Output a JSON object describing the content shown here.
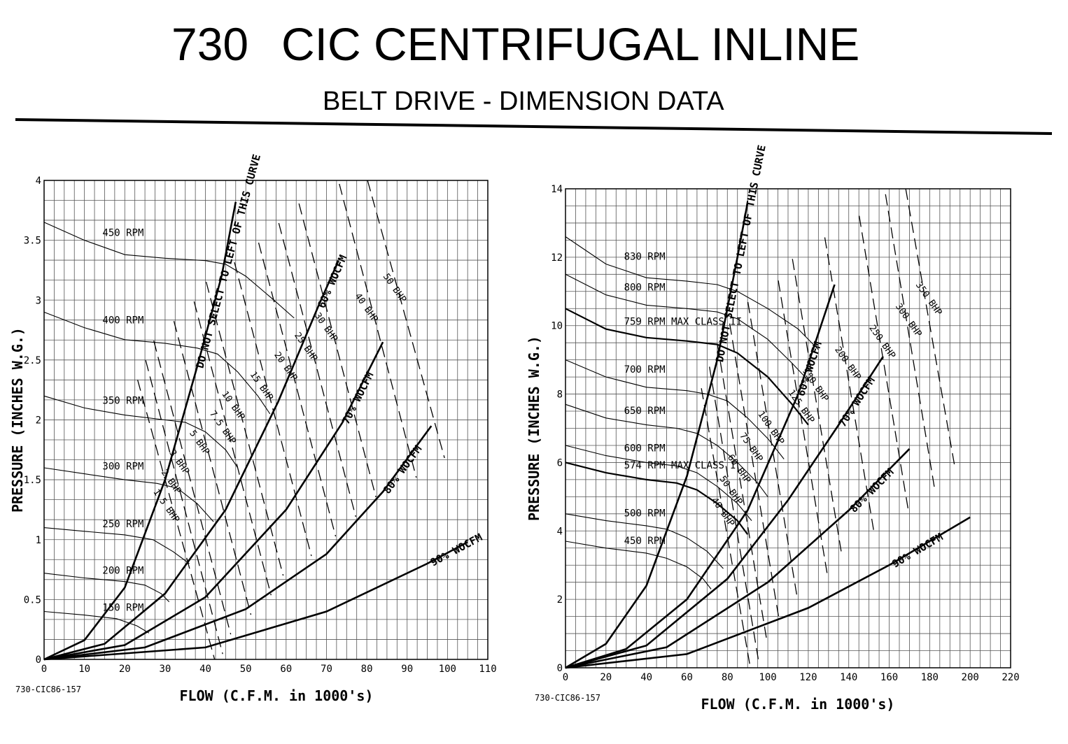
{
  "header": {
    "model": "730",
    "title": "CIC CENTRIFUGAL INLINE",
    "subtitle": "BELT DRIVE - DIMENSION DATA"
  },
  "chart_data": [
    {
      "type": "line",
      "drawing_number": "730-CIC86-157",
      "xlabel": "FLOW (C.F.M. in 1000's)",
      "ylabel": "PRESSURE (INCHES W.G.)",
      "xlim": [
        0,
        110
      ],
      "ylim": [
        0,
        4
      ],
      "x_ticks": [
        0,
        10,
        20,
        30,
        40,
        50,
        60,
        70,
        80,
        90,
        100,
        110
      ],
      "y_ticks": [
        0,
        0.5,
        1,
        1.5,
        2,
        2.5,
        3,
        3.5,
        4
      ],
      "grid": true,
      "rpm_curves": [
        {
          "label": "450 RPM",
          "points": [
            [
              0,
              3.65
            ],
            [
              10,
              3.5
            ],
            [
              20,
              3.38
            ],
            [
              30,
              3.35
            ],
            [
              40,
              3.33
            ],
            [
              45,
              3.3
            ],
            [
              50,
              3.2
            ],
            [
              57,
              3.0
            ],
            [
              62,
              2.85
            ]
          ]
        },
        {
          "label": "400 RPM",
          "points": [
            [
              0,
              2.9
            ],
            [
              10,
              2.77
            ],
            [
              20,
              2.67
            ],
            [
              30,
              2.64
            ],
            [
              38,
              2.6
            ],
            [
              43,
              2.55
            ],
            [
              48,
              2.4
            ],
            [
              53,
              2.2
            ],
            [
              56,
              2.05
            ]
          ]
        },
        {
          "label": "350 RPM",
          "points": [
            [
              0,
              2.2
            ],
            [
              10,
              2.1
            ],
            [
              20,
              2.04
            ],
            [
              30,
              2.0
            ],
            [
              35,
              1.98
            ],
            [
              40,
              1.9
            ],
            [
              45,
              1.75
            ],
            [
              48,
              1.6
            ]
          ]
        },
        {
          "label": "300 RPM",
          "points": [
            [
              0,
              1.6
            ],
            [
              10,
              1.55
            ],
            [
              20,
              1.5
            ],
            [
              28,
              1.47
            ],
            [
              33,
              1.43
            ],
            [
              38,
              1.3
            ],
            [
              42,
              1.15
            ]
          ]
        },
        {
          "label": "250 RPM",
          "points": [
            [
              0,
              1.1
            ],
            [
              10,
              1.07
            ],
            [
              20,
              1.04
            ],
            [
              27,
              1.0
            ],
            [
              32,
              0.9
            ],
            [
              36,
              0.8
            ]
          ]
        },
        {
          "label": "200 RPM",
          "points": [
            [
              0,
              0.72
            ],
            [
              10,
              0.68
            ],
            [
              20,
              0.65
            ],
            [
              25,
              0.62
            ],
            [
              29,
              0.55
            ],
            [
              31,
              0.48
            ]
          ]
        },
        {
          "label": "150 RPM",
          "points": [
            [
              0,
              0.4
            ],
            [
              10,
              0.37
            ],
            [
              18,
              0.34
            ],
            [
              23,
              0.28
            ],
            [
              26,
              0.22
            ]
          ]
        }
      ],
      "wocfm_curves": [
        {
          "label": "DO NOT SELECT TO LEFT OF THIS CURVE",
          "points": [
            [
              0,
              0
            ],
            [
              10,
              0.16
            ],
            [
              20,
              0.6
            ],
            [
              30,
              1.5
            ],
            [
              38,
              2.45
            ],
            [
              44,
              3.2
            ],
            [
              47.5,
              3.82
            ]
          ]
        },
        {
          "label": "60% WOCFM",
          "points": [
            [
              0,
              0
            ],
            [
              15,
              0.13
            ],
            [
              30,
              0.55
            ],
            [
              45,
              1.25
            ],
            [
              58,
              2.15
            ],
            [
              68,
              2.95
            ],
            [
              73,
              3.33
            ]
          ]
        },
        {
          "label": "70% WOCFM",
          "points": [
            [
              0,
              0
            ],
            [
              20,
              0.12
            ],
            [
              40,
              0.52
            ],
            [
              60,
              1.25
            ],
            [
              74,
              1.98
            ],
            [
              84,
              2.65
            ]
          ]
        },
        {
          "label": "80% WOCFM",
          "points": [
            [
              0,
              0
            ],
            [
              25,
              0.1
            ],
            [
              50,
              0.42
            ],
            [
              70,
              0.88
            ],
            [
              84,
              1.4
            ],
            [
              96,
              1.95
            ]
          ]
        },
        {
          "label": "90% WOCFM",
          "points": [
            [
              0,
              0
            ],
            [
              40,
              0.1
            ],
            [
              70,
              0.4
            ],
            [
              95,
              0.8
            ],
            [
              105,
              0.98
            ]
          ]
        }
      ],
      "bhp_lines": [
        {
          "label": "1.5 BHP",
          "value_label_x": 27
        },
        {
          "label": "2 BHP",
          "value_label_x": 29
        },
        {
          "label": "3 BHP",
          "value_label_x": 31
        },
        {
          "label": "5 BHP",
          "value_label_x": 36
        },
        {
          "label": "7.5 BHP",
          "value_label_x": 41
        },
        {
          "label": "10 BHP",
          "value_label_x": 44
        },
        {
          "label": "15 BHP",
          "value_label_x": 51
        },
        {
          "label": "20 BHP",
          "value_label_x": 57
        },
        {
          "label": "25 BHP",
          "value_label_x": 62
        },
        {
          "label": "30 BHP",
          "value_label_x": 67
        },
        {
          "label": "40 BHP",
          "value_label_x": 77
        },
        {
          "label": "50 BHP",
          "value_label_x": 84
        }
      ]
    },
    {
      "type": "line",
      "drawing_number": "730-CIC86-157",
      "xlabel": "FLOW (C.F.M. in 1000's)",
      "ylabel": "PRESSURE (INCHES W.G.)",
      "xlim": [
        0,
        220
      ],
      "ylim": [
        0,
        14
      ],
      "x_ticks": [
        0,
        20,
        40,
        60,
        80,
        100,
        120,
        140,
        160,
        180,
        200,
        220
      ],
      "y_ticks": [
        0,
        2,
        4,
        6,
        8,
        10,
        12,
        14
      ],
      "grid": true,
      "rpm_curves": [
        {
          "label": "830 RPM",
          "points": [
            [
              0,
              12.6
            ],
            [
              20,
              11.8
            ],
            [
              40,
              11.4
            ],
            [
              60,
              11.3
            ],
            [
              75,
              11.2
            ],
            [
              85,
              11.0
            ],
            [
              100,
              10.5
            ],
            [
              115,
              9.9
            ],
            [
              125,
              9.3
            ]
          ]
        },
        {
          "label": "800 RPM",
          "points": [
            [
              0,
              11.5
            ],
            [
              20,
              10.9
            ],
            [
              40,
              10.6
            ],
            [
              60,
              10.5
            ],
            [
              75,
              10.4
            ],
            [
              85,
              10.2
            ],
            [
              100,
              9.6
            ],
            [
              112,
              8.9
            ],
            [
              120,
              8.4
            ]
          ]
        },
        {
          "label": "759 RPM MAX CLASS II",
          "points": [
            [
              0,
              10.5
            ],
            [
              20,
              9.9
            ],
            [
              40,
              9.65
            ],
            [
              60,
              9.55
            ],
            [
              75,
              9.45
            ],
            [
              85,
              9.2
            ],
            [
              100,
              8.5
            ],
            [
              112,
              7.7
            ],
            [
              120,
              7.1
            ]
          ]
        },
        {
          "label": "700 RPM",
          "points": [
            [
              0,
              9.0
            ],
            [
              20,
              8.5
            ],
            [
              40,
              8.2
            ],
            [
              60,
              8.1
            ],
            [
              70,
              8.0
            ],
            [
              80,
              7.8
            ],
            [
              90,
              7.3
            ],
            [
              100,
              6.7
            ],
            [
              108,
              6.1
            ]
          ]
        },
        {
          "label": "650 RPM",
          "points": [
            [
              0,
              7.7
            ],
            [
              20,
              7.3
            ],
            [
              40,
              7.1
            ],
            [
              55,
              7.0
            ],
            [
              65,
              6.85
            ],
            [
              75,
              6.5
            ],
            [
              85,
              6.0
            ],
            [
              95,
              5.4
            ],
            [
              100,
              5.0
            ]
          ]
        },
        {
          "label": "600 RPM",
          "points": [
            [
              0,
              6.5
            ],
            [
              20,
              6.2
            ],
            [
              40,
              6.0
            ],
            [
              55,
              5.9
            ],
            [
              65,
              5.7
            ],
            [
              75,
              5.3
            ],
            [
              85,
              4.8
            ],
            [
              92,
              4.3
            ]
          ]
        },
        {
          "label": "574 RPM MAX CLASS I",
          "points": [
            [
              0,
              6.0
            ],
            [
              20,
              5.7
            ],
            [
              40,
              5.5
            ],
            [
              55,
              5.4
            ],
            [
              65,
              5.2
            ],
            [
              75,
              4.8
            ],
            [
              85,
              4.3
            ],
            [
              90,
              3.9
            ]
          ]
        },
        {
          "label": "500 RPM",
          "points": [
            [
              0,
              4.5
            ],
            [
              20,
              4.3
            ],
            [
              40,
              4.15
            ],
            [
              50,
              4.05
            ],
            [
              60,
              3.8
            ],
            [
              70,
              3.4
            ],
            [
              78,
              2.9
            ]
          ]
        },
        {
          "label": "450 RPM",
          "points": [
            [
              0,
              3.7
            ],
            [
              20,
              3.5
            ],
            [
              40,
              3.35
            ],
            [
              50,
              3.2
            ],
            [
              60,
              2.95
            ],
            [
              68,
              2.6
            ],
            [
              72,
              2.3
            ]
          ]
        }
      ],
      "wocfm_curves": [
        {
          "label": "DO NOT SELECT TO LEFT OF THIS CURVE",
          "points": [
            [
              0,
              0
            ],
            [
              20,
              0.7
            ],
            [
              40,
              2.4
            ],
            [
              60,
              5.6
            ],
            [
              75,
              9.0
            ],
            [
              85,
              12.0
            ],
            [
              90,
              13.6
            ]
          ]
        },
        {
          "label": "60% WOCFM",
          "points": [
            [
              0,
              0
            ],
            [
              30,
              0.55
            ],
            [
              60,
              2.0
            ],
            [
              90,
              4.6
            ],
            [
              115,
              8.0
            ],
            [
              133,
              11.2
            ]
          ]
        },
        {
          "label": "70% WOCFM",
          "points": [
            [
              0,
              0
            ],
            [
              40,
              0.65
            ],
            [
              80,
              2.6
            ],
            [
              110,
              4.9
            ],
            [
              135,
              7.1
            ],
            [
              157,
              9.1
            ]
          ]
        },
        {
          "label": "80% WOCFM",
          "points": [
            [
              0,
              0
            ],
            [
              50,
              0.6
            ],
            [
              100,
              2.5
            ],
            [
              140,
              4.6
            ],
            [
              170,
              6.4
            ]
          ]
        },
        {
          "label": "90% WOCFM",
          "points": [
            [
              0,
              0
            ],
            [
              60,
              0.4
            ],
            [
              120,
              1.75
            ],
            [
              160,
              3.0
            ],
            [
              200,
              4.4
            ]
          ]
        }
      ],
      "bhp_lines": [
        {
          "label": "40 BHP",
          "value_label_x": 72
        },
        {
          "label": "50 BHP",
          "value_label_x": 76
        },
        {
          "label": "60 BHP",
          "value_label_x": 80
        },
        {
          "label": "75 BHP",
          "value_label_x": 86
        },
        {
          "label": "100 BHP",
          "value_label_x": 95
        },
        {
          "label": "125 BHP",
          "value_label_x": 110
        },
        {
          "label": "150 BHP",
          "value_label_x": 117
        },
        {
          "label": "200 BHP",
          "value_label_x": 133
        },
        {
          "label": "250 BHP",
          "value_label_x": 150
        },
        {
          "label": "300 BHP",
          "value_label_x": 163
        },
        {
          "label": "350 BHP",
          "value_label_x": 173
        }
      ]
    }
  ]
}
